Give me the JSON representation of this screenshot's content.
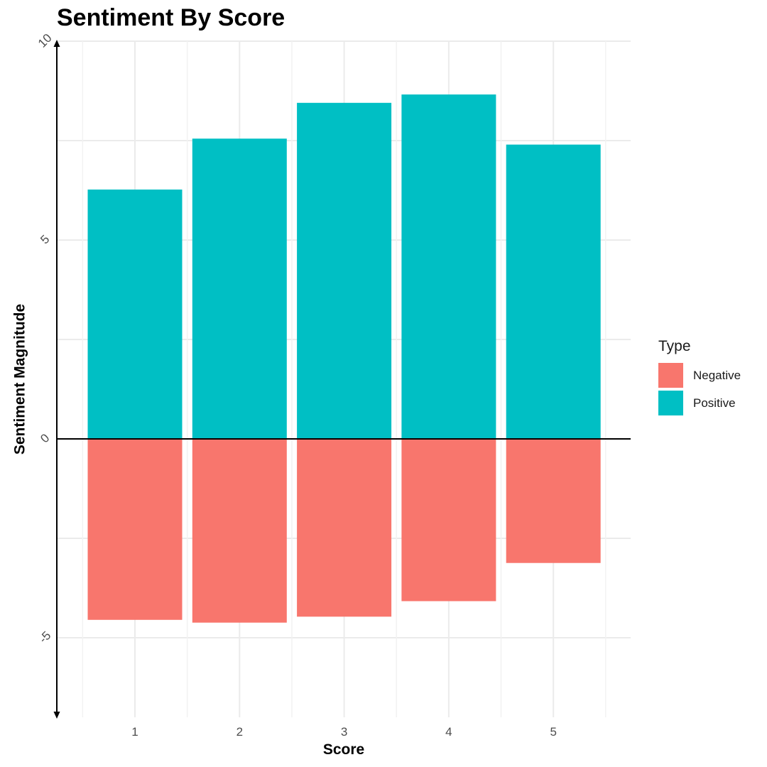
{
  "chart_data": {
    "type": "bar",
    "title": "Sentiment By Score",
    "xlabel": "Score",
    "ylabel": "Sentiment Magnitude",
    "categories": [
      "1",
      "2",
      "3",
      "4",
      "5"
    ],
    "ylim": [
      -7,
      10
    ],
    "yticks": [
      -5,
      0,
      5,
      10
    ],
    "grid": true,
    "legend": {
      "title": "Type",
      "position": "right"
    },
    "series": [
      {
        "name": "Negative",
        "color": "#F8766D",
        "values": [
          -4.55,
          -4.62,
          -4.47,
          -4.08,
          -3.12
        ]
      },
      {
        "name": "Positive",
        "color": "#00BFC4",
        "values": [
          6.27,
          7.55,
          8.45,
          8.66,
          7.4
        ]
      }
    ]
  }
}
